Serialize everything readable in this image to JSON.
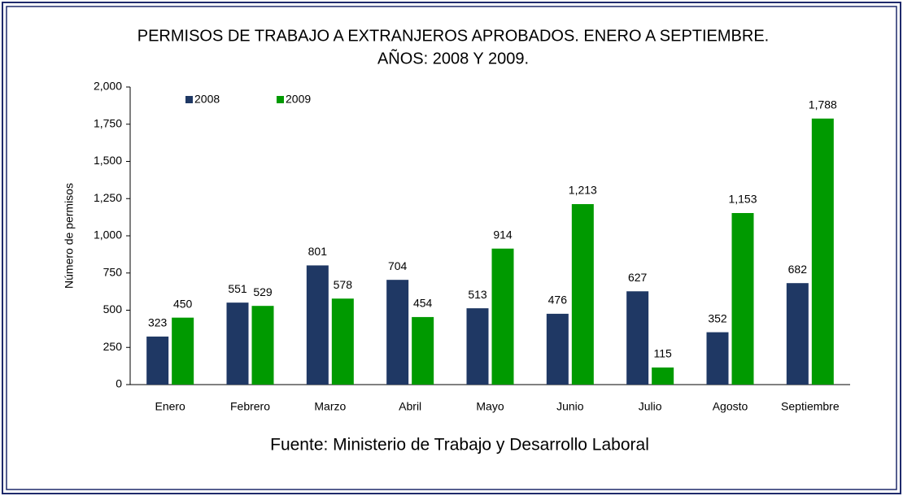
{
  "chart_data": {
    "type": "bar",
    "title": "PERMISOS DE TRABAJO A EXTRANJEROS APROBADOS. ENERO A SEPTIEMBRE.",
    "subtitle": "AÑOS: 2008 Y 2009.",
    "y_label": "Número de permisos",
    "source": "Fuente: Ministerio de Trabajo y Desarrollo Laboral",
    "categories": [
      "Enero",
      "Febrero",
      "Marzo",
      "Abril",
      "Mayo",
      "Junio",
      "Julio",
      "Agosto",
      "Septiembre"
    ],
    "series": [
      {
        "name": "2008",
        "color": "#1f3864",
        "values": [
          323,
          551,
          801,
          704,
          513,
          476,
          627,
          352,
          682
        ],
        "value_labels": [
          "323",
          "551",
          "801",
          "704",
          "513",
          "476",
          "627",
          "352",
          "682"
        ]
      },
      {
        "name": "2009",
        "color": "#009a00",
        "values": [
          450,
          529,
          578,
          454,
          914,
          1213,
          115,
          1153,
          1788
        ],
        "value_labels": [
          "450",
          "529",
          "578",
          "454",
          "914",
          "1,213",
          "115",
          "1,153",
          "1,788"
        ]
      }
    ],
    "ylim": [
      0,
      2000
    ],
    "yticks": [
      0,
      250,
      500,
      750,
      {
        "value": 1000,
        "label": "1,000"
      },
      {
        "value": 1250,
        "label": "1,250"
      },
      {
        "value": 1500,
        "label": "1,500"
      },
      {
        "value": 1750,
        "label": "1,750"
      },
      {
        "value": 2000,
        "label": "2,000"
      }
    ],
    "grid": false,
    "legend": "top-left"
  }
}
